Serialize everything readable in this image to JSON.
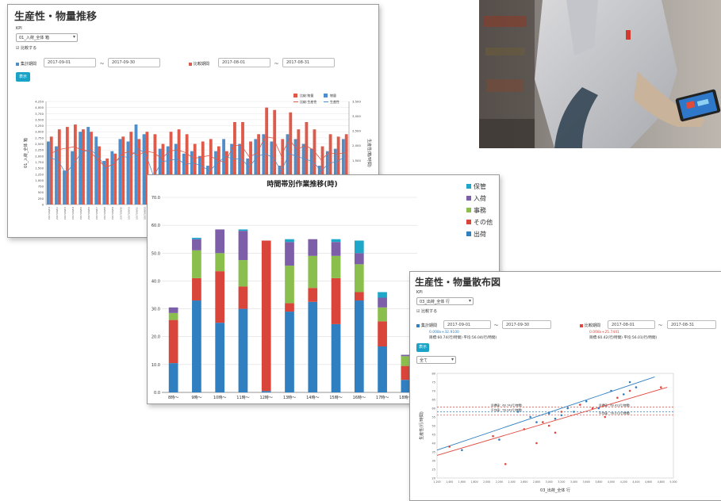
{
  "panel1": {
    "title": "生産性・物量推移",
    "kpi_label": "KPI",
    "kpi_value": "01_入荷_全体 箱",
    "compare_label": "比較する",
    "period1_label": "集計期間",
    "period1_from": "2017-09-01",
    "period1_to": "2017-09-30",
    "tilde": "〜",
    "period2_label": "比較期間",
    "period2_from": "2017-08-01",
    "period2_to": "2017-08-31",
    "show_button": "表示",
    "y_left_label": "01_入荷_全体 箱",
    "y_right_label": "生産性(箱/時間)",
    "legend": [
      "比較:物量",
      "物量",
      "比較:生産性",
      "生産性"
    ],
    "colors": {
      "current": "#4f8ec9",
      "compare": "#de5a4a"
    },
    "y_ticks": [
      "0",
      "250",
      "500",
      "750",
      "1,000",
      "1,250",
      "1,500",
      "1,750",
      "2,000",
      "2,250",
      "2,500",
      "2,750",
      "3,000",
      "3,250",
      "3,500",
      "3,750",
      "4,000",
      "4,250"
    ],
    "y2_ticks": [
      "0",
      "500",
      "1,000",
      "1,500",
      "2,000",
      "2,500",
      "3,000",
      "3,500"
    ],
    "chart_data": {
      "type": "bar",
      "series": [
        {
          "name": "物量",
          "values": [
            2600,
            2400,
            1400,
            2200,
            3000,
            3200,
            2800,
            1800,
            2200,
            2700,
            2600,
            3300,
            2900,
            1200,
            2300,
            2400,
            2500,
            2100,
            2200,
            2000,
            1600,
            2200,
            2700,
            2500,
            2500,
            1900,
            2700,
            2900,
            2600,
            1600,
            2900,
            2700,
            2500,
            2300,
            1600,
            2200,
            2300,
            2700
          ]
        },
        {
          "name": "比較:物量",
          "values": [
            2800,
            3100,
            3200,
            3300,
            3100,
            3000,
            2400,
            1900,
            2100,
            2800,
            3000,
            2700,
            3000,
            2900,
            2500,
            3000,
            3100,
            2900,
            2500,
            2600,
            2700,
            2400,
            2200,
            3400,
            3400,
            2600,
            2900,
            4000,
            3900,
            2700,
            3800,
            3100,
            3400,
            3100,
            2400,
            2900,
            2800,
            2900
          ]
        }
      ]
    }
  },
  "panel2": {
    "title": "時間帯別作業推移(時)",
    "legend": [
      "保管",
      "入荷",
      "事務",
      "その他",
      "出荷"
    ],
    "colors": [
      "#1ea7c9",
      "#7d5ea8",
      "#8bbf4d",
      "#d9453b",
      "#2f7fc1"
    ],
    "y_ticks": [
      "0.0",
      "10.0",
      "20.0",
      "30.0",
      "40.0",
      "50.0",
      "60.0",
      "70.0"
    ],
    "chart_data": {
      "type": "bar",
      "categories": [
        "8時〜",
        "9時〜",
        "10時〜",
        "11時〜",
        "12時〜",
        "13時〜",
        "14時〜",
        "15時〜",
        "16時〜",
        "17時〜",
        "18時〜"
      ],
      "ylim": [
        0,
        70
      ],
      "series": [
        {
          "name": "出荷",
          "values": [
            10.5,
            33,
            25,
            30,
            0.5,
            29,
            32.5,
            24.5,
            33,
            16.5,
            4.5
          ]
        },
        {
          "name": "その他",
          "values": [
            15.5,
            8,
            18.5,
            8,
            54,
            3,
            5,
            16.5,
            3,
            9,
            5
          ]
        },
        {
          "name": "事務",
          "values": [
            2.5,
            10,
            6.5,
            9.5,
            0,
            13.5,
            11.5,
            8,
            10,
            5,
            3.5
          ]
        },
        {
          "name": "入荷",
          "values": [
            2,
            4,
            8.5,
            10.5,
            0,
            8.5,
            6,
            5,
            4,
            3.5,
            0.5
          ]
        },
        {
          "name": "保管",
          "values": [
            0,
            0.5,
            0,
            0.5,
            0,
            1,
            0,
            1,
            4.5,
            2,
            0
          ]
        }
      ]
    }
  },
  "panel3": {
    "title": "生産性・物量散布図",
    "kpi_label": "KPI",
    "kpi_value": "03_出荷_全体 行",
    "compare_label": "比較する",
    "period1_label": "集計期間",
    "period1_from": "2017-09-01",
    "period1_to": "2017-09-30",
    "tilde": "〜",
    "period2_label": "比較期間",
    "period2_from": "2017-08-01",
    "period2_to": "2017-08-31",
    "eq1": "0.008x+32.9100",
    "stats1": "目標:60.74(行/時間) 平均:56.04(行/時間)",
    "eq2": "0.008x+25.7441",
    "stats2": "目標:60.42(行/時間) 平均:56.01(行/時間)",
    "show_button": "表示",
    "filter_value": "全て",
    "ylabel": "生産性(行/時間)",
    "xlabel": "03_出荷_全体 行",
    "target_label": "目標値：60.74(行/時間)",
    "avg_label": "平均値：56.04(行/時間)",
    "target_label2": "目標値：60.42(行/時間)",
    "avg_label2": "平均値：56.01(行/時間)",
    "colors": {
      "current": "#2f7fc1",
      "compare": "#e0463c"
    },
    "chart_data": {
      "type": "scatter",
      "series": [
        {
          "name": "集計期間",
          "points": [
            [
              1600,
              36
            ],
            [
              2200,
              42
            ],
            [
              2500,
              58
            ],
            [
              2700,
              55
            ],
            [
              2800,
              52
            ],
            [
              3000,
              57
            ],
            [
              3100,
              54
            ],
            [
              3200,
              56
            ],
            [
              3300,
              60
            ],
            [
              3400,
              58
            ],
            [
              3600,
              64
            ],
            [
              3800,
              60
            ],
            [
              4000,
              70
            ],
            [
              4200,
              68
            ],
            [
              4300,
              75
            ],
            [
              4400,
              72
            ]
          ]
        },
        {
          "name": "比較期間",
          "points": [
            [
              1400,
              38
            ],
            [
              2100,
              44
            ],
            [
              2300,
              28
            ],
            [
              2600,
              48
            ],
            [
              2900,
              52
            ],
            [
              3000,
              50
            ],
            [
              3200,
              58
            ],
            [
              3500,
              62
            ],
            [
              3700,
              60
            ],
            [
              3900,
              55
            ],
            [
              4100,
              66
            ],
            [
              4300,
              70
            ],
            [
              4800,
              72
            ],
            [
              2800,
              40
            ],
            [
              3100,
              46
            ]
          ]
        }
      ]
    }
  }
}
